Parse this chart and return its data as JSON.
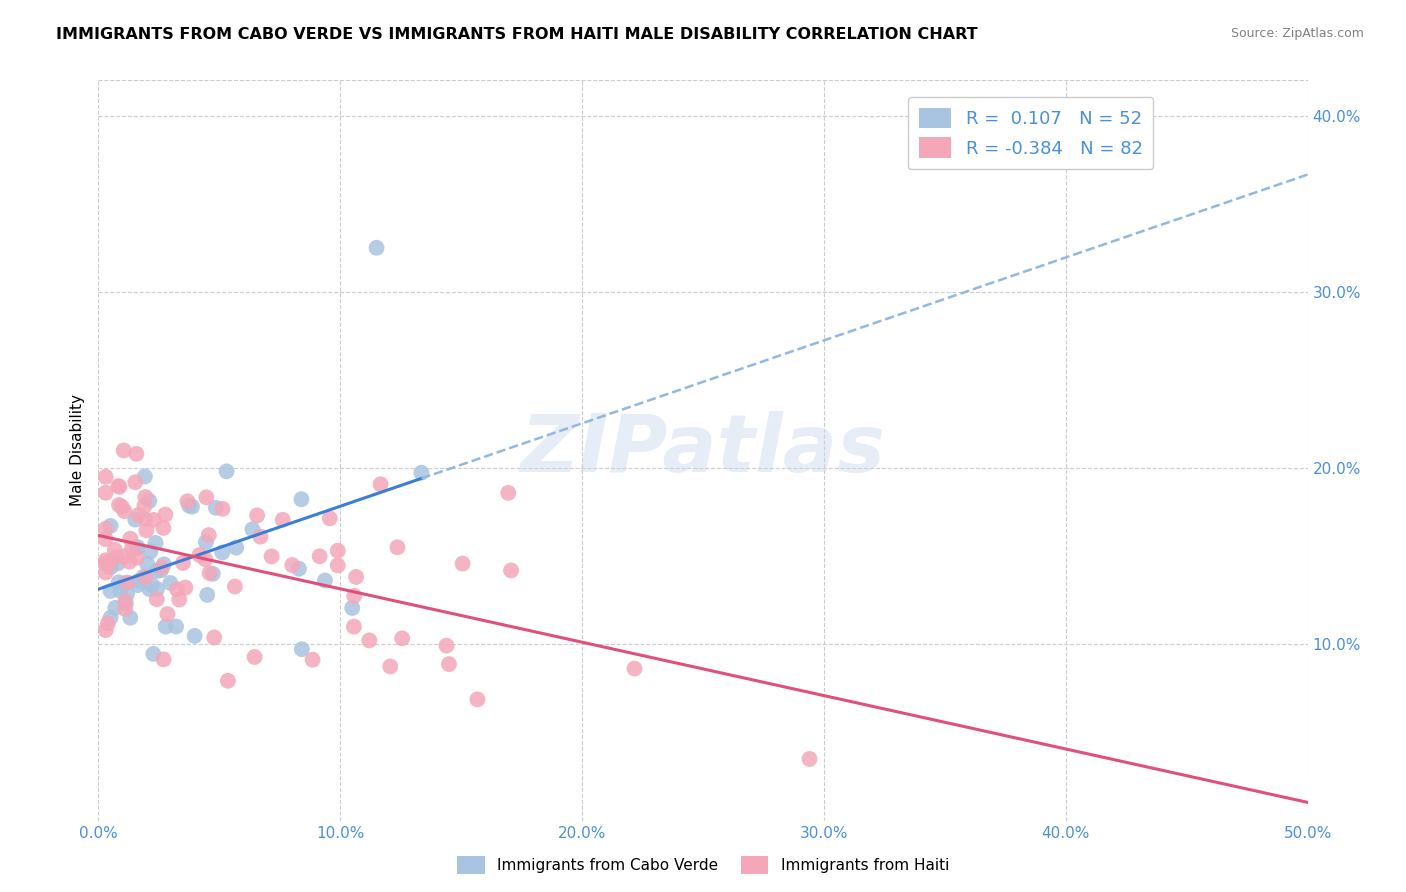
{
  "title": "IMMIGRANTS FROM CABO VERDE VS IMMIGRANTS FROM HAITI MALE DISABILITY CORRELATION CHART",
  "source": "Source: ZipAtlas.com",
  "ylabel": "Male Disability",
  "xlim": [
    0.0,
    0.5
  ],
  "ylim": [
    0.0,
    0.42
  ],
  "xticks": [
    0.0,
    0.1,
    0.2,
    0.3,
    0.4,
    0.5
  ],
  "yticks": [
    0.1,
    0.2,
    0.3,
    0.4
  ],
  "xticklabels": [
    "0.0%",
    "10.0%",
    "20.0%",
    "30.0%",
    "40.0%",
    "50.0%"
  ],
  "yticklabels": [
    "10.0%",
    "20.0%",
    "30.0%",
    "40.0%"
  ],
  "cabo_verde_color": "#a8c4e0",
  "haiti_color": "#f4a7b9",
  "cabo_verde_R": 0.107,
  "cabo_verde_N": 52,
  "haiti_R": -0.384,
  "haiti_N": 82,
  "cabo_verde_line_color": "#3a7fd5",
  "haiti_line_color": "#e0507a",
  "dashed_line_color": "#90b8e0",
  "watermark": "ZIPatlas",
  "tick_color": "#4a90d9",
  "grid_color": "#cccccc"
}
